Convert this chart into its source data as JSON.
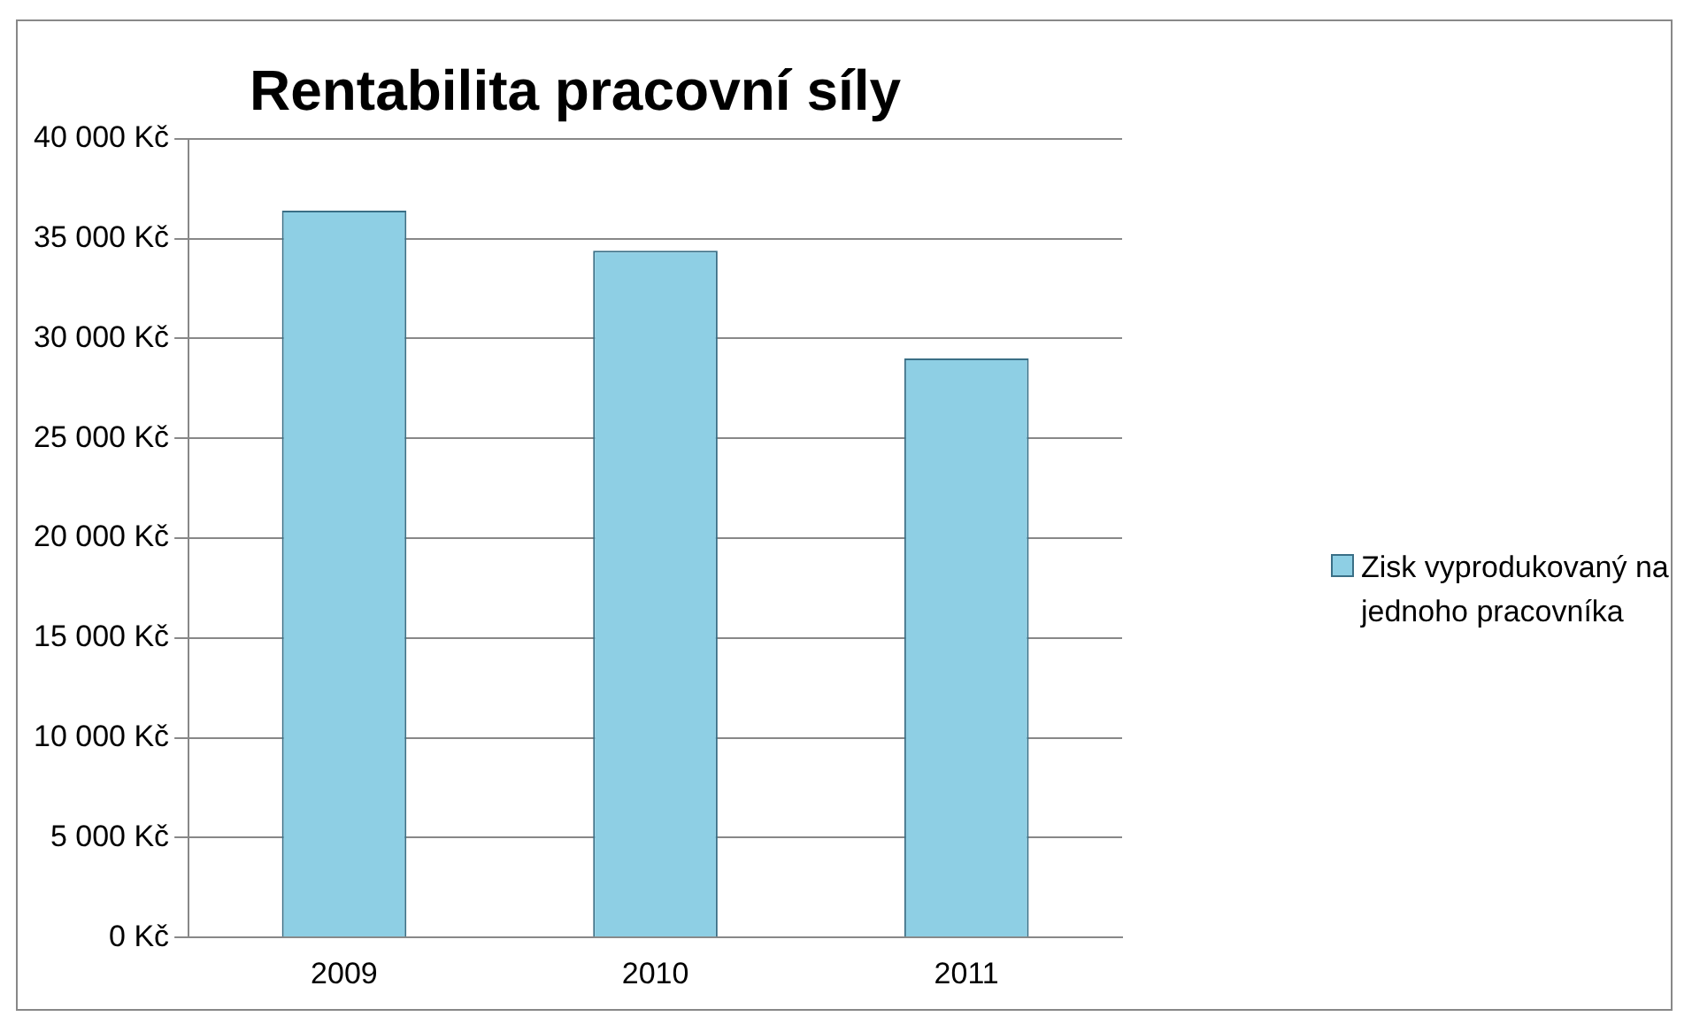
{
  "chart_data": {
    "type": "bar",
    "title": "Rentabilita pracovní síly",
    "categories": [
      "2009",
      "2010",
      "2011"
    ],
    "series": [
      {
        "name": "Zisk vyprodukovaný na jednoho pracovníka",
        "color": "#8ecfe4",
        "values": [
          36400,
          34400,
          29000
        ]
      }
    ],
    "ylim": [
      0,
      40000
    ],
    "yticks": [
      {
        "value": 0,
        "label": "0 Kč"
      },
      {
        "value": 5000,
        "label": "5 000 Kč"
      },
      {
        "value": 10000,
        "label": "10 000 Kč"
      },
      {
        "value": 15000,
        "label": "15 000 Kč"
      },
      {
        "value": 20000,
        "label": "20 000 Kč"
      },
      {
        "value": 25000,
        "label": "25 000 Kč"
      },
      {
        "value": 30000,
        "label": "30 000 Kč"
      },
      {
        "value": 35000,
        "label": "35 000 Kč"
      },
      {
        "value": 40000,
        "label": "40 000 Kč"
      }
    ],
    "grid": "y",
    "legend": "right"
  }
}
